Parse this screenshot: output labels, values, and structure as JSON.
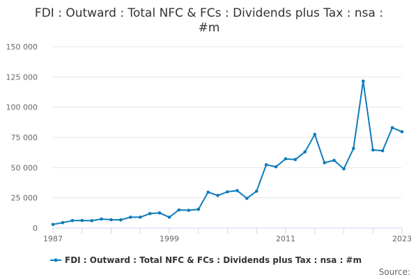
{
  "chart_data": {
    "type": "line",
    "title": "FDI : Outward : Total NFC & FCs : Dividends plus Tax : nsa : #m",
    "xlabel": "",
    "ylabel": "",
    "x": [
      1987,
      1988,
      1989,
      1990,
      1991,
      1992,
      1993,
      1994,
      1995,
      1996,
      1997,
      1998,
      1999,
      2000,
      2001,
      2002,
      2003,
      2004,
      2005,
      2006,
      2007,
      2008,
      2009,
      2010,
      2011,
      2012,
      2013,
      2014,
      2015,
      2016,
      2017,
      2018,
      2019,
      2020,
      2021,
      2022,
      2023
    ],
    "series": [
      {
        "name": "FDI : Outward : Total NFC & FCs : Dividends plus Tax : nsa : #m",
        "color": "#0d7bb9",
        "values": [
          3000,
          4500,
          6200,
          6300,
          6100,
          7500,
          6900,
          6800,
          9000,
          9000,
          12000,
          12500,
          9000,
          15000,
          14700,
          15500,
          29700,
          27000,
          30000,
          31000,
          24600,
          30500,
          52400,
          50700,
          57300,
          56700,
          63000,
          77500,
          54000,
          56000,
          49000,
          65800,
          121500,
          64600,
          64000,
          83000,
          79700
        ]
      }
    ],
    "xlim": [
      1987,
      2023
    ],
    "ylim": [
      0,
      150000
    ],
    "x_tick_labels": [
      "1987",
      "1999",
      "2011",
      "2023"
    ],
    "x_tick_values": [
      1987,
      1999,
      2011,
      2023
    ],
    "y_ticks": [
      0,
      25000,
      50000,
      75000,
      100000,
      125000,
      150000
    ],
    "y_tick_labels": [
      "0",
      "25 000",
      "50 000",
      "75 000",
      "100 000",
      "125 000",
      "150 000"
    ],
    "grid": true,
    "legend": "bottom-center",
    "credit": "Source:"
  }
}
